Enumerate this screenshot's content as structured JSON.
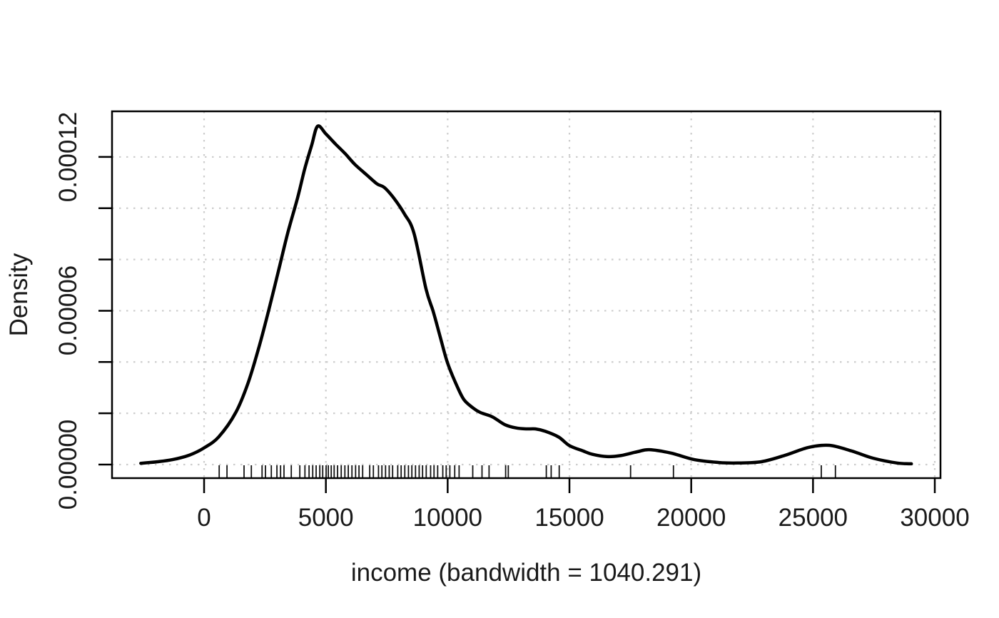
{
  "figure": {
    "background": "#ffffff",
    "text_color": "#1a1a1a",
    "grid_color": "#cdcdcd",
    "curve_color": "#000000",
    "box_color": "#000000"
  },
  "chart_data": {
    "type": "line",
    "title": "",
    "xlabel": "income (bandwidth = 1040.291)",
    "ylabel": "Density",
    "bandwidth": 1040.291,
    "grid": true,
    "legend": "none",
    "xlim": [
      -3780,
      30234
    ],
    "ylim": [
      -5.3e-06,
      0.0001378
    ],
    "x_ticks": [
      0,
      5000,
      10000,
      15000,
      20000,
      25000,
      30000
    ],
    "x_tick_labels": [
      "0",
      "5000",
      "10000",
      "15000",
      "20000",
      "25000",
      "30000"
    ],
    "y_ticks": [
      0,
      2e-05,
      4e-05,
      6e-05,
      8e-05,
      0.0001,
      0.00012
    ],
    "y_tick_labels": [
      "0.00000",
      null,
      null,
      "0.00006",
      null,
      null,
      "0.00012"
    ],
    "series": [
      {
        "name": "density",
        "points": [
          [
            -2600,
            5e-07
          ],
          [
            -2000,
            1e-06
          ],
          [
            -1300,
            1.9e-06
          ],
          [
            -600,
            3.7e-06
          ],
          [
            0,
            6.5e-06
          ],
          [
            600,
            1.08e-05
          ],
          [
            1300,
            2.03e-05
          ],
          [
            1800,
            3.17e-05
          ],
          [
            2250,
            4.57e-05
          ],
          [
            2650,
            6.01e-05
          ],
          [
            3050,
            7.54e-05
          ],
          [
            3430,
            9.02e-05
          ],
          [
            3840,
            0.0001041
          ],
          [
            4130,
            0.0001153
          ],
          [
            4420,
            0.0001247
          ],
          [
            4660,
            0.000132
          ],
          [
            5000,
            0.000129
          ],
          [
            5400,
            0.000125
          ],
          [
            5800,
            0.0001212
          ],
          [
            6200,
            0.000117
          ],
          [
            6700,
            0.0001128
          ],
          [
            7100,
            0.0001095
          ],
          [
            7400,
            0.0001081
          ],
          [
            7800,
            0.0001038
          ],
          [
            8230,
            9.77e-05
          ],
          [
            8620,
            9.02e-05
          ],
          [
            9110,
            6.85e-05
          ],
          [
            9410,
            5.96e-05
          ],
          [
            9700,
            4.96e-05
          ],
          [
            9990,
            3.98e-05
          ],
          [
            10370,
            3.09e-05
          ],
          [
            10670,
            2.53e-05
          ],
          [
            11050,
            2.2e-05
          ],
          [
            11340,
            2.03e-05
          ],
          [
            11840,
            1.86e-05
          ],
          [
            12340,
            1.56e-05
          ],
          [
            12800,
            1.43e-05
          ],
          [
            13220,
            1.39e-05
          ],
          [
            13600,
            1.39e-05
          ],
          [
            14000,
            1.3e-05
          ],
          [
            14560,
            1.07e-05
          ],
          [
            15000,
            7.4e-06
          ],
          [
            15560,
            5.3e-06
          ],
          [
            15940,
            4e-06
          ],
          [
            16530,
            3.1e-06
          ],
          [
            17110,
            3.5e-06
          ],
          [
            17790,
            5e-06
          ],
          [
            18280,
            5.8e-06
          ],
          [
            19160,
            4.5e-06
          ],
          [
            20130,
            1.9e-06
          ],
          [
            21130,
            8e-07
          ],
          [
            21890,
            6e-07
          ],
          [
            22880,
            1.1e-06
          ],
          [
            23850,
            3.6e-06
          ],
          [
            24820,
            6.7e-06
          ],
          [
            25670,
            7.5e-06
          ],
          [
            26580,
            5.3e-06
          ],
          [
            27460,
            2.5e-06
          ],
          [
            28450,
            6e-07
          ],
          [
            29040,
            3e-07
          ]
        ]
      }
    ],
    "rug_values": [
      620,
      940,
      1640,
      1940,
      2380,
      2520,
      2760,
      2990,
      3140,
      3280,
      3580,
      3930,
      4140,
      4310,
      4460,
      4600,
      4750,
      4870,
      5010,
      5100,
      5220,
      5340,
      5480,
      5630,
      5780,
      5920,
      6070,
      6220,
      6360,
      6510,
      6800,
      6950,
      7160,
      7300,
      7450,
      7600,
      7740,
      7950,
      8090,
      8240,
      8390,
      8530,
      8680,
      8830,
      8970,
      9120,
      9300,
      9440,
      9590,
      9800,
      9940,
      10090,
      10290,
      10470,
      11030,
      11410,
      11700,
      12380,
      12490,
      14050,
      14250,
      14580,
      17510,
      19270,
      25340,
      25920
    ]
  }
}
